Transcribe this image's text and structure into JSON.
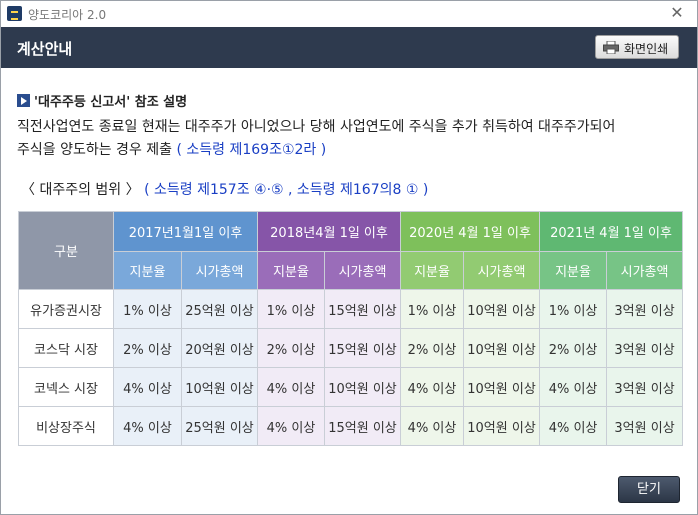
{
  "window": {
    "title": "양도코리아 2.0",
    "close_glyph": "✕"
  },
  "header": {
    "title": "계산안내",
    "print_label": "화면인쇄"
  },
  "section": {
    "title": "'대주주등 신고서' 참조 설명",
    "line1": "직전사업연도 종료일 현재는 대주주가 아니었으나 당해 사업연도에 주식을 추가 취득하여 대주주가되어",
    "line2": "주식을 양도하는 경우 제출",
    "line2_law": "( 소득령 제169조①2라 )"
  },
  "range": {
    "title": "〈 대주주의 범위 〉",
    "law": " ( 소득령 제157조 ④·⑤ , 소득령 제167의8 ① )"
  },
  "table": {
    "gubun": "구분",
    "periods": [
      "2017년1월1일 이후",
      "2018년4월 1일 이후",
      "2020년 4월 1일 이후",
      "2021년 4월 1일 이후"
    ],
    "sub_headers": [
      "지분율",
      "시가총액",
      "지분율",
      "시가총액",
      "지분율",
      "시가총액",
      "지분율",
      "시가총액"
    ],
    "rows": [
      {
        "label": "유가증권시장",
        "cells": [
          "1% 이상",
          "25억원 이상",
          "1% 이상",
          "15억원 이상",
          "1% 이상",
          "10억원 이상",
          "1% 이상",
          "3억원 이상"
        ]
      },
      {
        "label": "코스닥 시장",
        "cells": [
          "2% 이상",
          "20억원 이상",
          "2% 이상",
          "15억원 이상",
          "2% 이상",
          "10억원 이상",
          "2% 이상",
          "3억원 이상"
        ]
      },
      {
        "label": "코넥스 시장",
        "cells": [
          "4% 이상",
          "10억원 이상",
          "4% 이상",
          "10억원 이상",
          "4% 이상",
          "10억원 이상",
          "4% 이상",
          "3억원 이상"
        ]
      },
      {
        "label": "비상장주식",
        "cells": [
          "4% 이상",
          "25억원 이상",
          "4% 이상",
          "15억원 이상",
          "4% 이상",
          "10억원 이상",
          "4% 이상",
          "3억원 이상"
        ]
      }
    ]
  },
  "footer": {
    "close_label": "닫기"
  },
  "colors": {
    "header_bg": "#2e3a4e",
    "link": "#1a3fc4",
    "period1": "#5f94cf",
    "period2": "#8655a8",
    "period3": "#7ec05b",
    "period4": "#5fb872"
  },
  "icons": {
    "app": "app-logo-icon",
    "print": "printer-icon",
    "bullet": "play-bullet-icon",
    "close": "close-icon"
  }
}
